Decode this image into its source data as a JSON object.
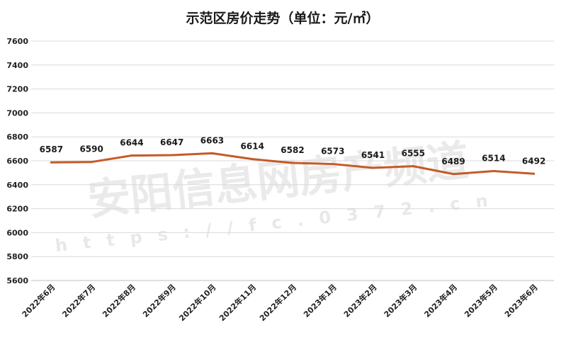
{
  "chart_data": {
    "type": "line",
    "title": "示范区房价走势（单位：元/㎡）",
    "xlabel": "",
    "ylabel": "",
    "categories": [
      "2022年6月",
      "2022年7月",
      "2022年8月",
      "2022年9月",
      "2022年10月",
      "2022年11月",
      "2022年12月",
      "2023年1月",
      "2023年2月",
      "2023年3月",
      "2023年4月",
      "2023年5月",
      "2023年6月"
    ],
    "series": [
      {
        "values": [
          6587,
          6590,
          6644,
          6647,
          6663,
          6614,
          6582,
          6573,
          6541,
          6555,
          6489,
          6514,
          6492
        ]
      }
    ],
    "ylim": [
      5600,
      7600
    ],
    "yticks": [
      5600,
      5800,
      6000,
      6200,
      6400,
      6600,
      6800,
      7000,
      7200,
      7400,
      7600
    ],
    "grid": true,
    "legend": "none",
    "line_color": "#c55a28"
  },
  "watermark": {
    "line1": "安阳信息网房产频道",
    "line2": "https://fc.0372.cn",
    "color": "#d9d9d9"
  }
}
